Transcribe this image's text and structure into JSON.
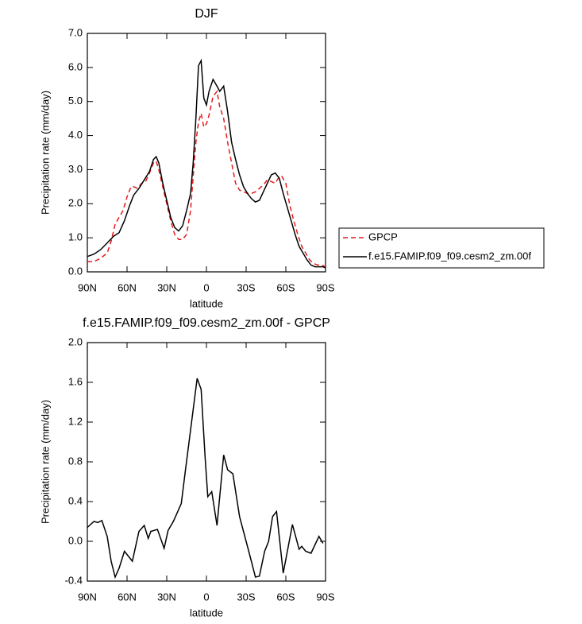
{
  "chart_data": [
    {
      "type": "line",
      "title": "DJF",
      "xlabel": "latitude",
      "ylabel": "Precipitation rate (mm/day)",
      "xlim": [
        90,
        -90
      ],
      "xticks": [
        {
          "value": 90,
          "label": "90N"
        },
        {
          "value": 60,
          "label": "60N"
        },
        {
          "value": 30,
          "label": "30N"
        },
        0,
        {
          "value": -30,
          "label": "30S"
        },
        {
          "value": -60,
          "label": "60S"
        },
        {
          "value": -90,
          "label": "90S"
        }
      ],
      "ylim": [
        0,
        7
      ],
      "yticks": [
        {
          "value": 0,
          "label": "0.0"
        },
        {
          "value": 1,
          "label": "1.0"
        },
        {
          "value": 2,
          "label": "2.0"
        },
        {
          "value": 3,
          "label": "3.0"
        },
        {
          "value": 4,
          "label": "4.0"
        },
        {
          "value": 5,
          "label": "5.0"
        },
        {
          "value": 6,
          "label": "6.0"
        },
        {
          "value": 7,
          "label": "7.0"
        }
      ],
      "legend": "right",
      "series": [
        {
          "name": "GPCP",
          "color": "#e41a1c",
          "dashed": true,
          "x": [
            90,
            85,
            80,
            75,
            72,
            69,
            66,
            63,
            60,
            57,
            55,
            52,
            49,
            46,
            43,
            40,
            38,
            36,
            33,
            30,
            27,
            24,
            21,
            18,
            15,
            12,
            10,
            8,
            6,
            4,
            2,
            0,
            -2,
            -5,
            -8,
            -10,
            -13,
            -16,
            -19,
            -22,
            -25,
            -28,
            -31,
            -34,
            -37,
            -40,
            -43,
            -46,
            -49,
            -52,
            -55,
            -57,
            -60,
            -63,
            -66,
            -69,
            -72,
            -75,
            -78,
            -81,
            -84,
            -87,
            -90
          ],
          "values": [
            0.3,
            0.3,
            0.4,
            0.55,
            0.9,
            1.4,
            1.6,
            1.8,
            2.2,
            2.5,
            2.5,
            2.45,
            2.6,
            2.65,
            2.9,
            3.2,
            3.25,
            3.0,
            2.5,
            2.0,
            1.5,
            1.1,
            0.95,
            0.95,
            1.1,
            1.8,
            2.8,
            3.8,
            4.4,
            4.65,
            4.25,
            4.35,
            4.6,
            5.15,
            5.3,
            4.85,
            4.5,
            3.8,
            3.2,
            2.6,
            2.4,
            2.35,
            2.3,
            2.3,
            2.35,
            2.45,
            2.55,
            2.7,
            2.65,
            2.6,
            2.8,
            2.8,
            2.6,
            1.95,
            1.5,
            1.1,
            0.75,
            0.55,
            0.35,
            0.25,
            0.2,
            0.2,
            0.15
          ]
        },
        {
          "name": "f.e15.FAMIP.f09_f09.cesm2_zm.00f",
          "color": "#000000",
          "dashed": false,
          "x": [
            90,
            85,
            80,
            75,
            70,
            66,
            62,
            58,
            55,
            51,
            47,
            43,
            40,
            38,
            36,
            33,
            30,
            27,
            24,
            21,
            18,
            15,
            12,
            10,
            8,
            6,
            4,
            2,
            0,
            -2,
            -5,
            -8,
            -10,
            -13,
            -16,
            -19,
            -22,
            -25,
            -28,
            -31,
            -34,
            -37,
            -40,
            -43,
            -46,
            -49,
            -52,
            -55,
            -58,
            -61,
            -64,
            -67,
            -70,
            -73,
            -76,
            -79,
            -82,
            -85,
            -88,
            -90
          ],
          "values": [
            0.45,
            0.52,
            0.65,
            0.85,
            1.05,
            1.15,
            1.5,
            1.95,
            2.25,
            2.45,
            2.7,
            2.95,
            3.3,
            3.38,
            3.2,
            2.6,
            2.1,
            1.6,
            1.3,
            1.2,
            1.35,
            1.8,
            2.3,
            3.2,
            4.5,
            6.05,
            6.2,
            5.1,
            4.9,
            5.3,
            5.65,
            5.45,
            5.3,
            5.45,
            4.7,
            3.8,
            3.3,
            2.85,
            2.5,
            2.3,
            2.15,
            2.05,
            2.1,
            2.35,
            2.6,
            2.85,
            2.9,
            2.75,
            2.3,
            1.9,
            1.5,
            1.1,
            0.75,
            0.55,
            0.35,
            0.2,
            0.15,
            0.15,
            0.15,
            0.12
          ]
        }
      ]
    },
    {
      "type": "line",
      "title": "f.e15.FAMIP.f09_f09.cesm2_zm.00f - GPCP",
      "xlabel": "latitude",
      "ylabel": "Precipitation rate (mm/day)",
      "xlim": [
        90,
        -90
      ],
      "xticks": [
        {
          "value": 90,
          "label": "90N"
        },
        {
          "value": 60,
          "label": "60N"
        },
        {
          "value": 30,
          "label": "30N"
        },
        0,
        {
          "value": -30,
          "label": "30S"
        },
        {
          "value": -60,
          "label": "60S"
        },
        {
          "value": -90,
          "label": "90S"
        }
      ],
      "ylim": [
        -0.4,
        2.0
      ],
      "yticks": [
        -0.4,
        {
          "value": 0,
          "label": "0.0"
        },
        0.4,
        0.8,
        1.2,
        1.6,
        {
          "value": 2,
          "label": "2.0"
        }
      ],
      "series": [
        {
          "color": "#000000",
          "dashed": false,
          "x": [
            90,
            85,
            82,
            79,
            75,
            72,
            69,
            66,
            62,
            56,
            51,
            47,
            44,
            42,
            37,
            32,
            29,
            25,
            19,
            16,
            7,
            4,
            1,
            -1,
            -4,
            -8,
            -13,
            -16,
            -20,
            -25,
            -32,
            -37,
            -40,
            -44,
            -47,
            -50,
            -53,
            -58,
            -65,
            -70,
            -72,
            -75,
            -79,
            -85,
            -88
          ],
          "values": [
            0.14,
            0.2,
            0.19,
            0.21,
            0.05,
            -0.2,
            -0.36,
            -0.27,
            -0.1,
            -0.2,
            0.1,
            0.16,
            0.03,
            0.1,
            0.12,
            -0.07,
            0.11,
            0.2,
            0.38,
            0.7,
            1.64,
            1.53,
            0.85,
            0.45,
            0.5,
            0.16,
            0.87,
            0.72,
            0.68,
            0.25,
            -0.1,
            -0.36,
            -0.35,
            -0.1,
            0.0,
            0.25,
            0.3,
            -0.32,
            0.17,
            -0.08,
            -0.05,
            -0.1,
            -0.12,
            0.05,
            -0.02
          ]
        }
      ]
    }
  ]
}
